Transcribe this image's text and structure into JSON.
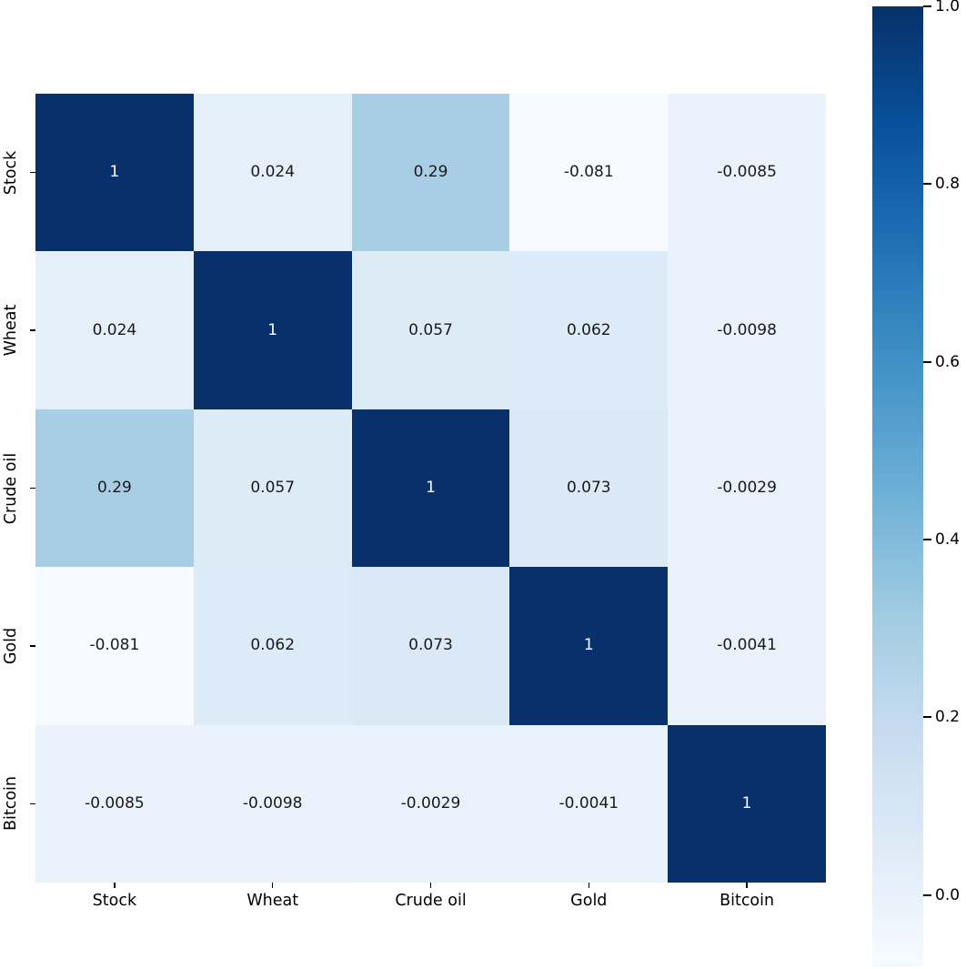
{
  "chart_data": {
    "type": "heatmap",
    "title": "",
    "xlabel": "",
    "ylabel": "",
    "categories": [
      "Stock",
      "Wheat",
      "Crude oil",
      "Gold",
      "Bitcoin"
    ],
    "matrix": [
      [
        1,
        0.024,
        0.29,
        -0.081,
        -0.0085
      ],
      [
        0.024,
        1,
        0.057,
        0.062,
        -0.0098
      ],
      [
        0.29,
        0.057,
        1,
        0.073,
        -0.0029
      ],
      [
        -0.081,
        0.062,
        0.073,
        1,
        -0.0041
      ],
      [
        -0.0085,
        -0.0098,
        -0.0029,
        -0.0041,
        1
      ]
    ],
    "cell_labels": [
      [
        "1",
        "0.024",
        "0.29",
        "-0.081",
        "-0.0085"
      ],
      [
        "0.024",
        "1",
        "0.057",
        "0.062",
        "-0.0098"
      ],
      [
        "0.29",
        "0.057",
        "1",
        "0.073",
        "-0.0029"
      ],
      [
        "-0.081",
        "0.062",
        "0.073",
        "1",
        "-0.0041"
      ],
      [
        "-0.0085",
        "-0.0098",
        "-0.0029",
        "-0.0041",
        "1"
      ]
    ],
    "vmin": -0.081,
    "vmax": 1.0,
    "colormap": {
      "name": "Blues",
      "anchors": [
        "#f7fbff",
        "#deebf7",
        "#c6dbef",
        "#9ecae1",
        "#6baed6",
        "#4292c6",
        "#2171b5",
        "#08519c",
        "#08306b"
      ]
    },
    "colorbar": {
      "tick_labels": [
        "1.0",
        "0.8",
        "0.6",
        "0.4",
        "0.2",
        "0.0"
      ],
      "tick_values": [
        1.0,
        0.8,
        0.6,
        0.4,
        0.2,
        0.0
      ],
      "position": "right"
    },
    "annotation_color_dark_cells": "#ffffff",
    "annotation_color_light_cells": "#1a1a1a",
    "grid": false,
    "background": "#ffffff"
  }
}
